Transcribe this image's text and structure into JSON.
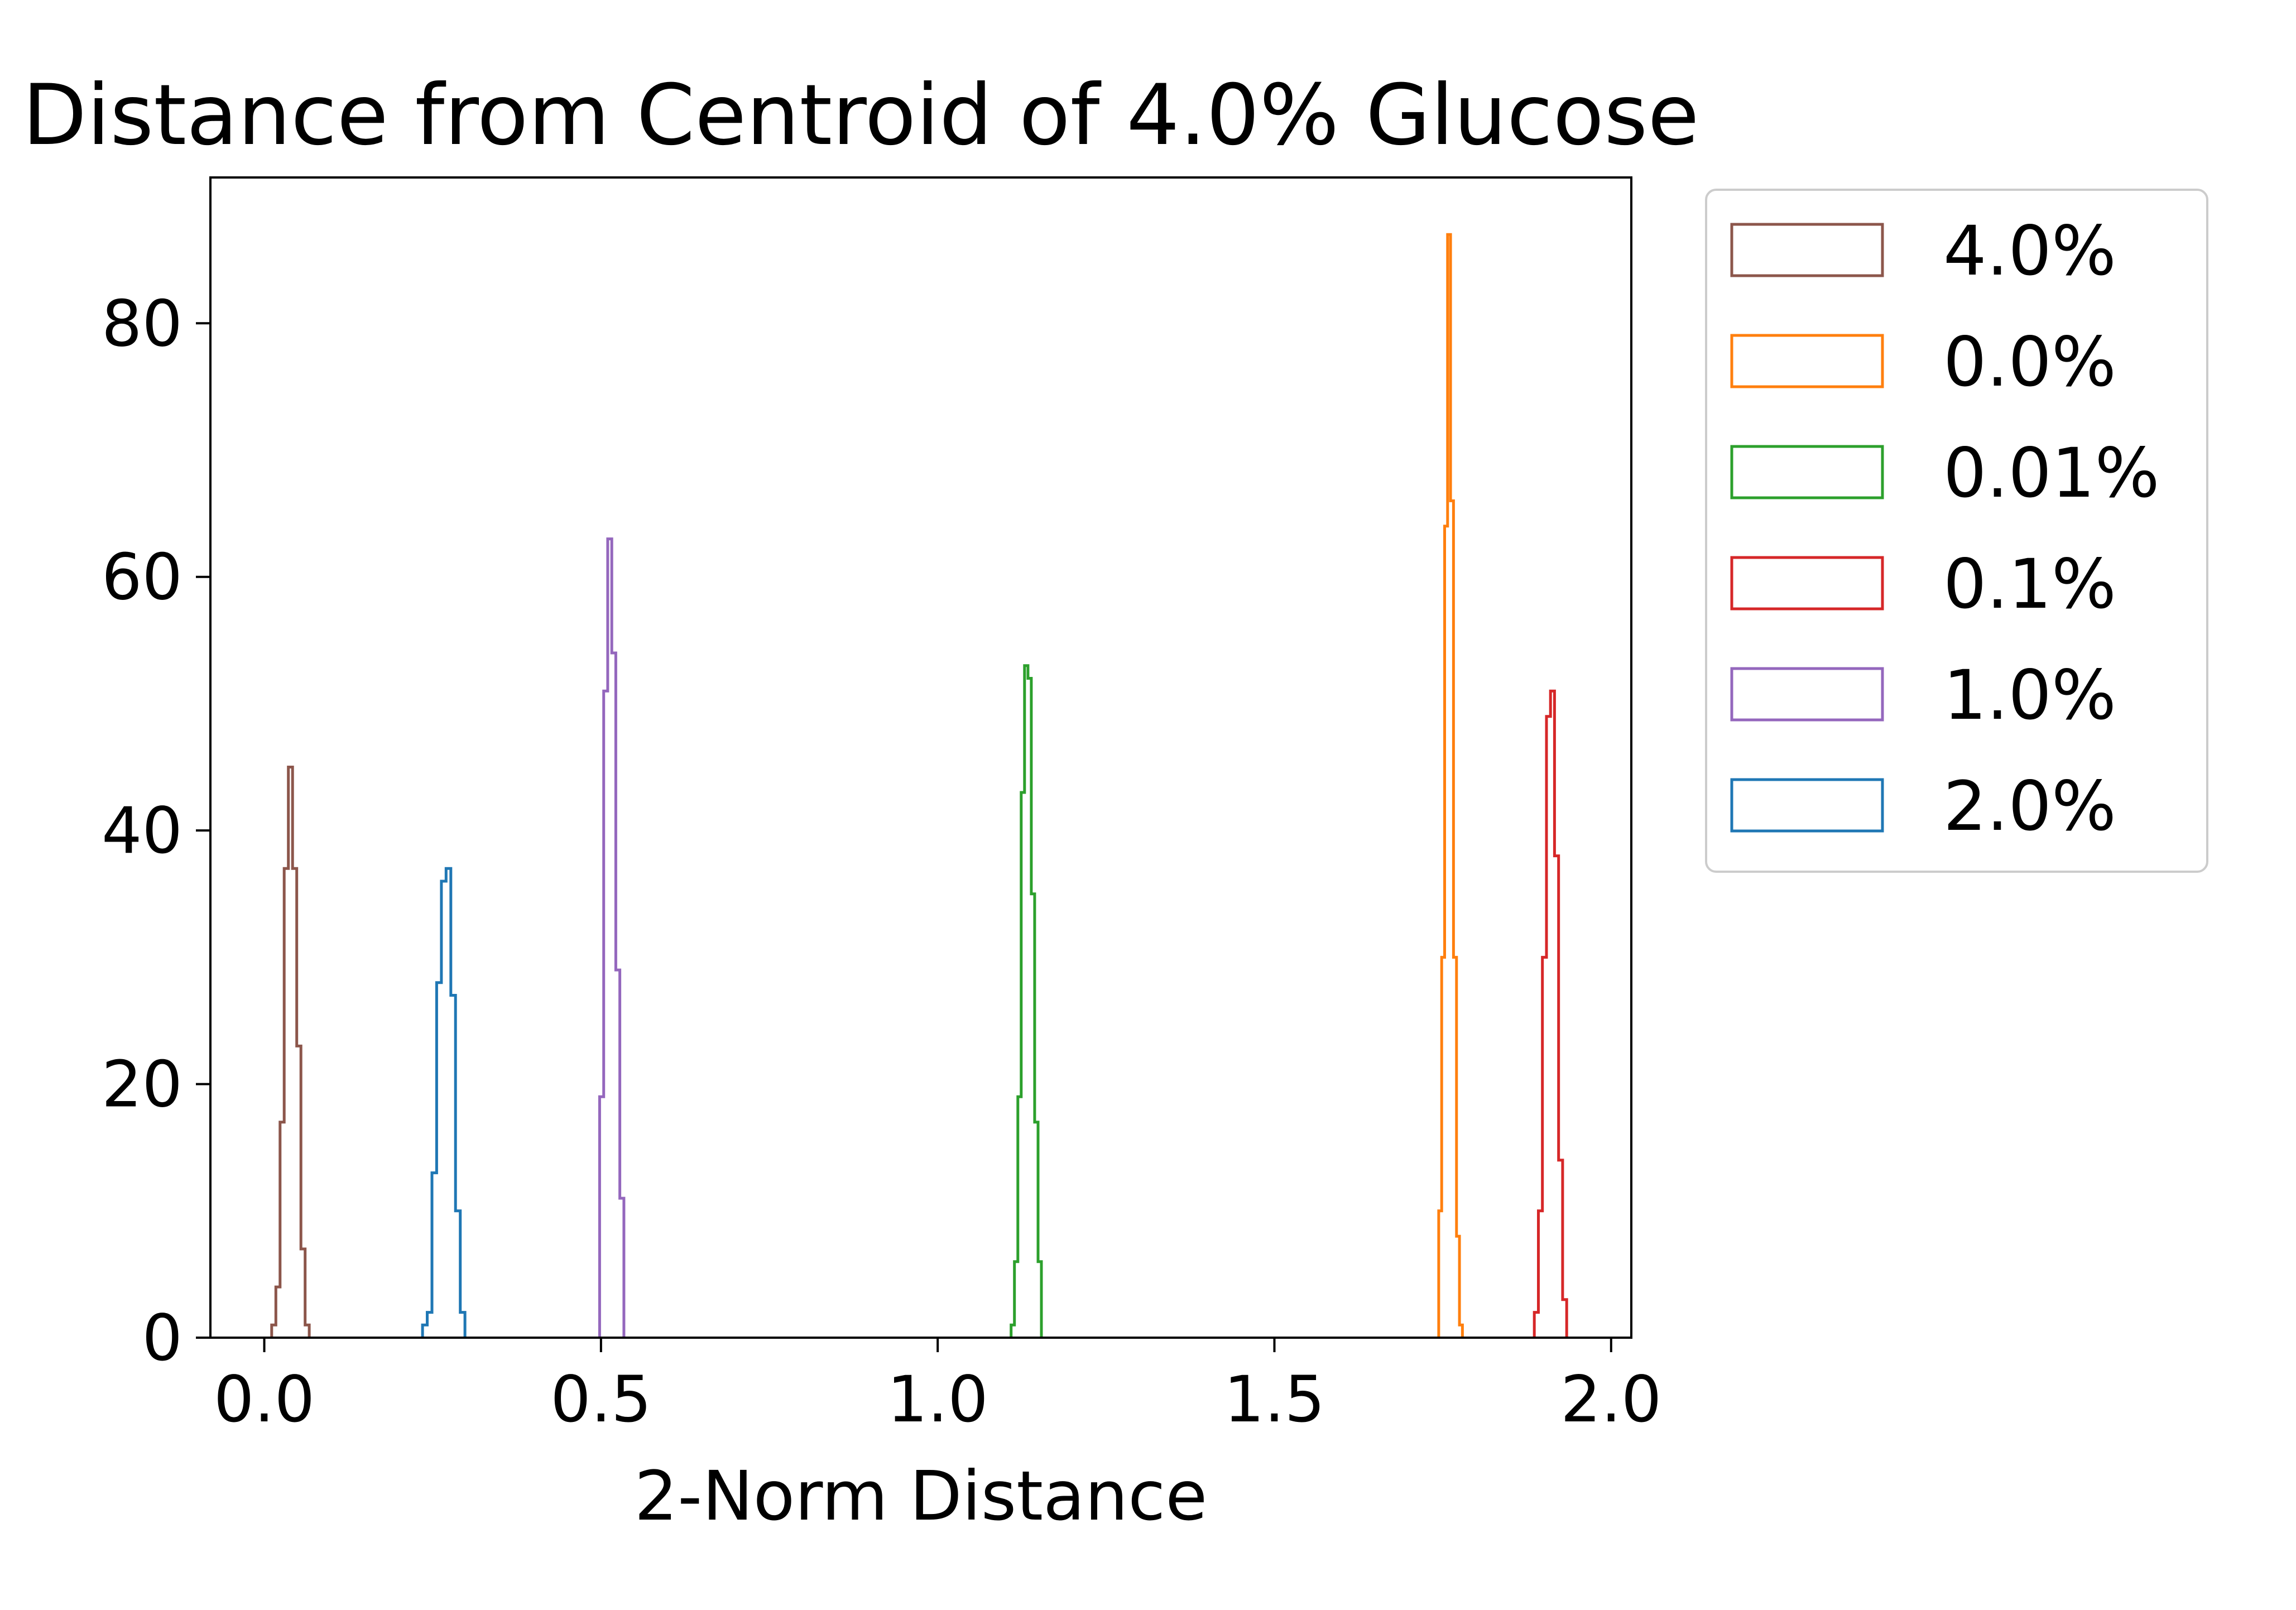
{
  "chart_data": {
    "type": "histogram",
    "title": "Distance from Centroid of 4.0% Glucose",
    "xlabel": "2-Norm Distance",
    "ylabel": "",
    "xlim": [
      -0.08,
      2.03
    ],
    "ylim": [
      0,
      91.5
    ],
    "xticks": [
      0.0,
      0.5,
      1.0,
      1.5,
      2.0
    ],
    "xtick_labels": [
      "0.0",
      "0.5",
      "1.0",
      "1.5",
      "2.0"
    ],
    "yticks": [
      0,
      20,
      40,
      60,
      80
    ],
    "ytick_labels": [
      "0",
      "20",
      "40",
      "60",
      "80"
    ],
    "grid": false,
    "legend": {
      "placement": "outside-upper-right"
    },
    "histtype": "step",
    "series": [
      {
        "name": "4.0%",
        "color": "#8c564b",
        "edges": [
          0.011,
          0.0172,
          0.0234,
          0.0296,
          0.0358,
          0.042,
          0.0482,
          0.0544,
          0.0606,
          0.0668
        ],
        "counts": [
          1,
          4,
          17,
          37,
          45,
          37,
          23,
          7,
          1
        ]
      },
      {
        "name": "0.0%",
        "color": "#ff7f0e",
        "edges": [
          1.744,
          1.7484,
          1.7528,
          1.7572,
          1.7616,
          1.766,
          1.7704,
          1.7748,
          1.7792
        ],
        "counts": [
          10,
          30,
          64,
          87,
          66,
          30,
          8,
          1
        ]
      },
      {
        "name": "0.01%",
        "color": "#2ca02c",
        "edges": [
          1.109,
          1.114,
          1.119,
          1.124,
          1.129,
          1.134,
          1.139,
          1.144,
          1.149,
          1.154
        ],
        "counts": [
          1,
          6,
          19,
          43,
          53,
          52,
          35,
          17,
          6
        ]
      },
      {
        "name": "0.1%",
        "color": "#d62728",
        "edges": [
          1.886,
          1.892,
          1.898,
          1.904,
          1.91,
          1.916,
          1.922,
          1.928,
          1.934
        ],
        "counts": [
          2,
          10,
          30,
          49,
          51,
          38,
          14,
          3
        ]
      },
      {
        "name": "1.0%",
        "color": "#9467bd",
        "edges": [
          0.498,
          0.504,
          0.51,
          0.516,
          0.522,
          0.528,
          0.534
        ],
        "counts": [
          19,
          51,
          63,
          54,
          29,
          11
        ]
      },
      {
        "name": "2.0%",
        "color": "#1f77b4",
        "edges": [
          0.235,
          0.242,
          0.249,
          0.256,
          0.263,
          0.27,
          0.277,
          0.284,
          0.291,
          0.298
        ],
        "counts": [
          1,
          2,
          13,
          28,
          36,
          37,
          27,
          10,
          2
        ]
      }
    ]
  }
}
